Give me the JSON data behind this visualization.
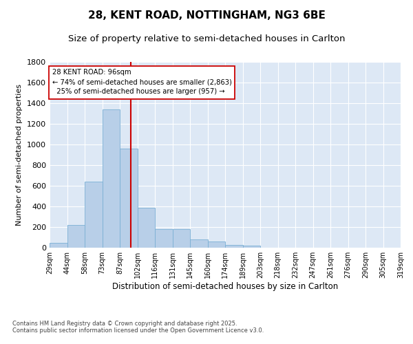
{
  "title_line1": "28, KENT ROAD, NOTTINGHAM, NG3 6BE",
  "title_line2": "Size of property relative to semi-detached houses in Carlton",
  "xlabel": "Distribution of semi-detached houses by size in Carlton",
  "ylabel": "Number of semi-detached properties",
  "bin_labels": [
    "29sqm",
    "44sqm",
    "58sqm",
    "73sqm",
    "87sqm",
    "102sqm",
    "116sqm",
    "131sqm",
    "145sqm",
    "160sqm",
    "174sqm",
    "189sqm",
    "203sqm",
    "218sqm",
    "232sqm",
    "247sqm",
    "261sqm",
    "276sqm",
    "290sqm",
    "305sqm",
    "319sqm"
  ],
  "bar_values": [
    50,
    220,
    640,
    1340,
    960,
    390,
    180,
    180,
    80,
    60,
    25,
    20,
    0,
    0,
    0,
    0,
    0,
    0,
    0,
    0
  ],
  "bin_width": 14.76,
  "n_bins": 20,
  "property_size": 96,
  "bar_color": "#b8cfe8",
  "bar_edge_color": "#7aafd4",
  "line_color": "#cc0000",
  "annotation_text": "28 KENT ROAD: 96sqm\n← 74% of semi-detached houses are smaller (2,863)\n  25% of semi-detached houses are larger (957) →",
  "annotation_box_color": "#ffffff",
  "annotation_box_edge": "#cc0000",
  "ylim": [
    0,
    1800
  ],
  "yticks": [
    0,
    200,
    400,
    600,
    800,
    1000,
    1200,
    1400,
    1600,
    1800
  ],
  "xlim_min": 29,
  "xlim_max": 319,
  "bg_color": "#dde8f5",
  "grid_color": "#ffffff",
  "footer": "Contains HM Land Registry data © Crown copyright and database right 2025.\nContains public sector information licensed under the Open Government Licence v3.0.",
  "title_fontsize": 11,
  "subtitle_fontsize": 9.5,
  "annotation_fontsize": 7.2,
  "ylabel_fontsize": 8,
  "xlabel_fontsize": 8.5,
  "tick_fontsize": 7,
  "footer_fontsize": 6
}
